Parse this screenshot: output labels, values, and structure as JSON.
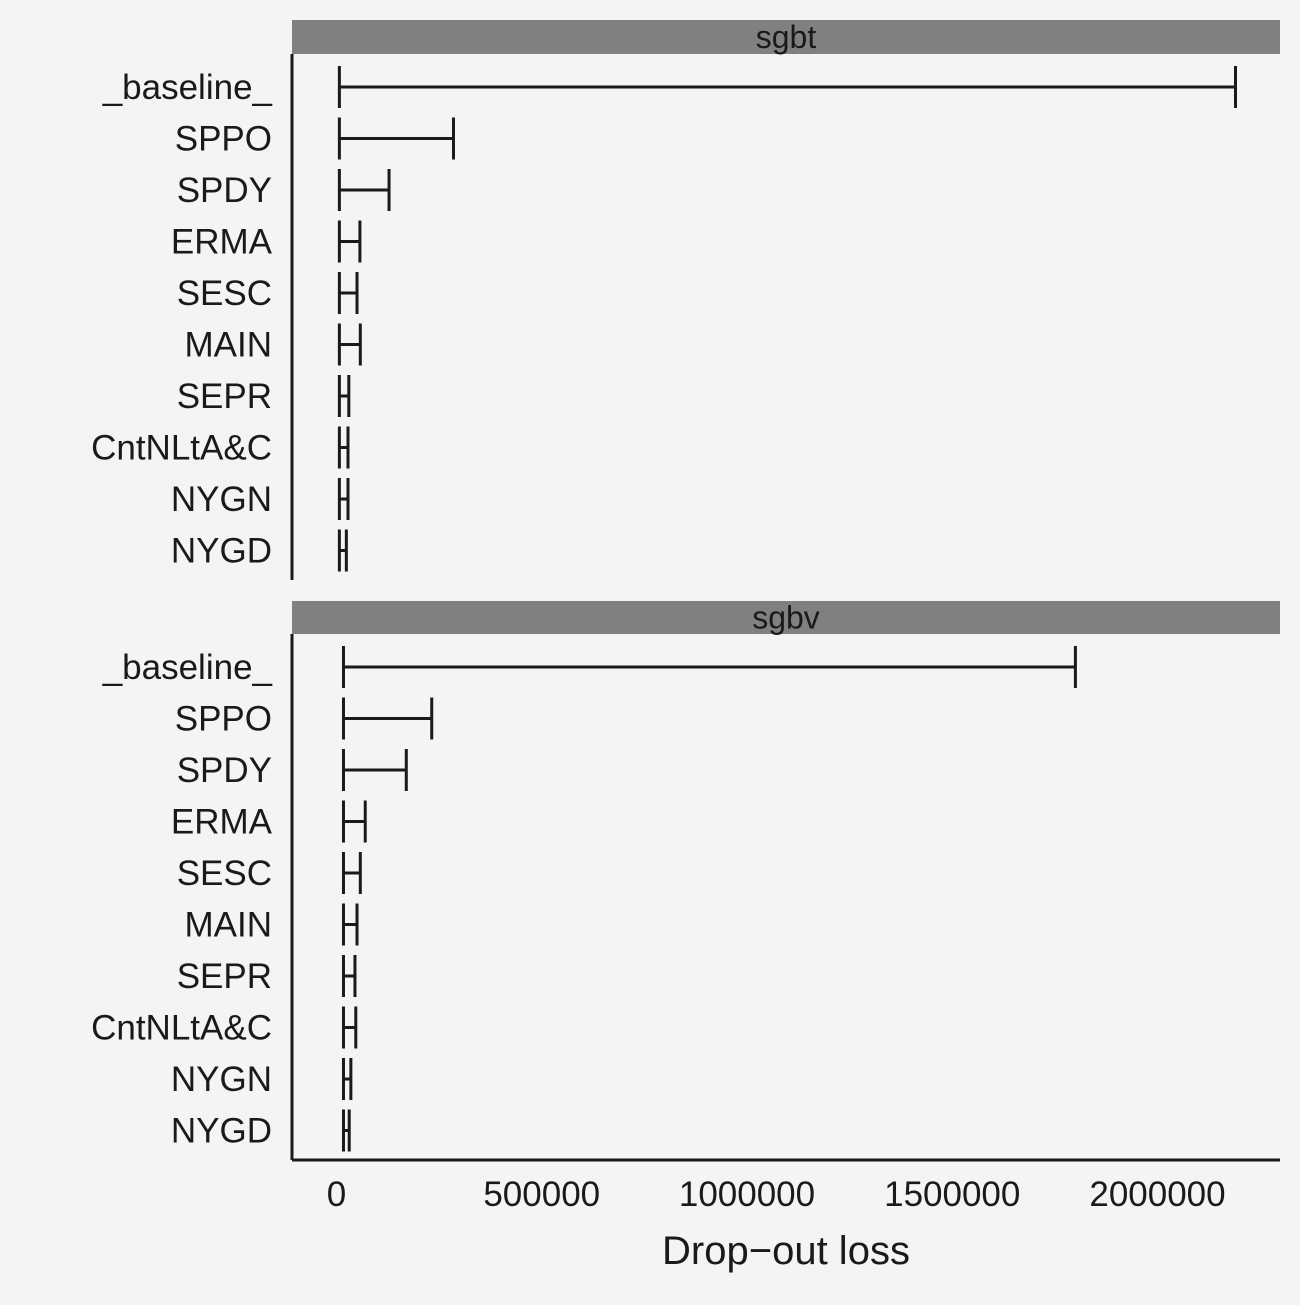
{
  "chart_data": {
    "type": "bar",
    "subtype": "drop-out-loss-ranges",
    "xlabel": "Drop−out loss",
    "ylabel": "",
    "xlim": [
      -100000,
      2300000
    ],
    "x_ticks": [
      0,
      500000,
      1000000,
      1500000,
      2000000
    ],
    "x_tick_labels": [
      "0",
      "500000",
      "1000000",
      "1500000",
      "2000000"
    ],
    "grid": false,
    "legend": "none",
    "colors": {
      "strip": "#808080",
      "background": "#f4f4f4",
      "ink": "#1a1a1a"
    },
    "categories": [
      "_baseline_",
      "SPPO",
      "SPDY",
      "ERMA",
      "SESC",
      "MAIN",
      "SEPR",
      "CntNLtA&C",
      "NYGN",
      "NYGD"
    ],
    "panels": [
      {
        "name": "sgbt",
        "full_model_loss": 7000,
        "values": [
          2190000,
          285000,
          128000,
          57000,
          50000,
          58000,
          30000,
          28000,
          28000,
          24000
        ]
      },
      {
        "name": "sgbv",
        "full_model_loss": 17000,
        "values": [
          1800000,
          232000,
          170000,
          70000,
          58000,
          50000,
          45000,
          47000,
          35000,
          31000
        ]
      }
    ]
  }
}
